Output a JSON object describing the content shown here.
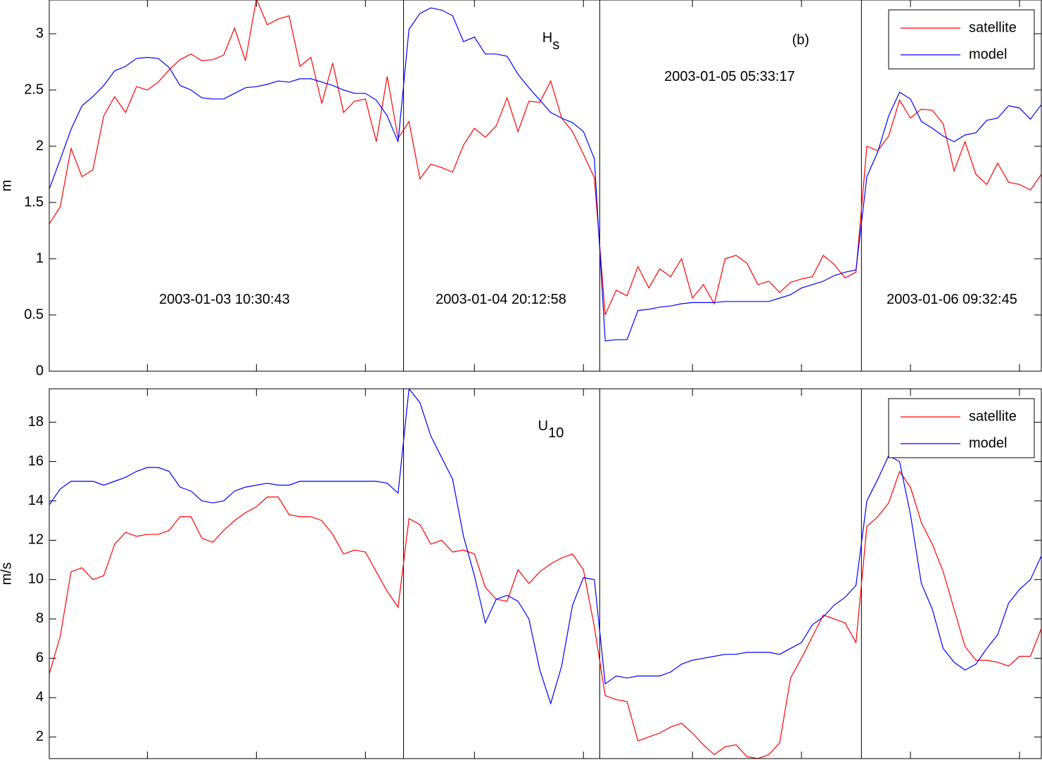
{
  "chart_data": [
    {
      "type": "line",
      "ylabel": "m",
      "annotations": [
        {
          "text": "H",
          "sub": "s"
        },
        {
          "text": "(b)"
        },
        {
          "text": "2003-01-05 05:33:17"
        },
        {
          "text": "2003-01-03 10:30:43"
        },
        {
          "text": "2003-01-04 20:12:58"
        },
        {
          "text": "2003-01-06 09:32:45"
        }
      ],
      "x": [
        1,
        2,
        3,
        4,
        5,
        6,
        7,
        8,
        9,
        10,
        11,
        12,
        13,
        14,
        15,
        16,
        17,
        18,
        19,
        20,
        21,
        22,
        23,
        24,
        25,
        26,
        27,
        28,
        29,
        30,
        31,
        32,
        33,
        34,
        35,
        36,
        37,
        38,
        39,
        40,
        41,
        42,
        43,
        44,
        45,
        46,
        47,
        48,
        49,
        50,
        51,
        52,
        53,
        54,
        55,
        56,
        57,
        58,
        59,
        60,
        61,
        62,
        63,
        64,
        65,
        66,
        67,
        68,
        69,
        70,
        71,
        72,
        73,
        74,
        75,
        76,
        77,
        78,
        79,
        80,
        81,
        82,
        83,
        84,
        85,
        86,
        87,
        88,
        89,
        90,
        91,
        92
      ],
      "series": [
        {
          "name": "satellite",
          "color": "#ff0000",
          "values": [
            1.31,
            1.46,
            1.98,
            1.73,
            1.79,
            2.27,
            2.44,
            2.3,
            2.53,
            2.5,
            2.57,
            2.68,
            2.77,
            2.82,
            2.76,
            2.77,
            2.81,
            3.05,
            2.76,
            3.31,
            3.08,
            3.13,
            3.16,
            2.71,
            2.79,
            2.38,
            2.74,
            2.3,
            2.4,
            2.42,
            2.04,
            2.62,
            2.07,
            2.22,
            1.71,
            1.84,
            1.81,
            1.77,
            2.01,
            2.16,
            2.08,
            2.18,
            2.43,
            2.13,
            2.4,
            2.39,
            2.58,
            2.25,
            2.13,
            1.93,
            1.72,
            0.5,
            0.72,
            0.67,
            0.93,
            0.74,
            0.91,
            0.84,
            1.0,
            0.65,
            0.77,
            0.6,
            1.0,
            1.03,
            0.96,
            0.77,
            0.8,
            0.7,
            0.79,
            0.82,
            0.84,
            1.03,
            0.95,
            0.83,
            0.88,
            2.0,
            1.96,
            2.09,
            2.41,
            2.25,
            2.33,
            2.32,
            2.2,
            1.78,
            2.04,
            1.75,
            1.66,
            1.85,
            1.68,
            1.66,
            1.61,
            1.75
          ]
        },
        {
          "name": "model",
          "color": "#0000ff",
          "values": [
            1.62,
            1.88,
            2.15,
            2.36,
            2.44,
            2.54,
            2.67,
            2.71,
            2.78,
            2.79,
            2.78,
            2.7,
            2.54,
            2.5,
            2.43,
            2.42,
            2.42,
            2.47,
            2.52,
            2.53,
            2.55,
            2.58,
            2.57,
            2.6,
            2.6,
            2.57,
            2.54,
            2.5,
            2.47,
            2.47,
            2.41,
            2.27,
            2.04,
            3.04,
            3.18,
            3.23,
            3.21,
            3.16,
            2.93,
            2.97,
            2.82,
            2.82,
            2.8,
            2.64,
            2.52,
            2.41,
            2.3,
            2.25,
            2.21,
            2.13,
            1.89,
            0.27,
            0.28,
            0.28,
            0.54,
            0.55,
            0.57,
            0.58,
            0.6,
            0.61,
            0.61,
            0.61,
            0.62,
            0.62,
            0.62,
            0.62,
            0.62,
            0.65,
            0.68,
            0.74,
            0.77,
            0.8,
            0.85,
            0.88,
            0.9,
            1.73,
            1.95,
            2.27,
            2.48,
            2.42,
            2.22,
            2.16,
            2.09,
            2.04,
            2.1,
            2.12,
            2.23,
            2.25,
            2.36,
            2.34,
            2.24,
            2.37
          ]
        }
      ],
      "vlines": [
        33.5,
        51.5,
        75.5
      ],
      "xlim": [
        1,
        92
      ],
      "xticks": [
        10,
        20,
        30,
        40,
        50,
        60,
        70,
        80,
        90
      ],
      "ylim": [
        0,
        3.3
      ],
      "yticks": [
        0,
        0.5,
        1,
        1.5,
        2,
        2.5,
        3
      ],
      "legend": "upper right"
    },
    {
      "type": "line",
      "ylabel": "m/s",
      "annotations": [
        {
          "text": "U",
          "sub": "10"
        }
      ],
      "x": [
        1,
        2,
        3,
        4,
        5,
        6,
        7,
        8,
        9,
        10,
        11,
        12,
        13,
        14,
        15,
        16,
        17,
        18,
        19,
        20,
        21,
        22,
        23,
        24,
        25,
        26,
        27,
        28,
        29,
        30,
        31,
        32,
        33,
        34,
        35,
        36,
        37,
        38,
        39,
        40,
        41,
        42,
        43,
        44,
        45,
        46,
        47,
        48,
        49,
        50,
        51,
        52,
        53,
        54,
        55,
        56,
        57,
        58,
        59,
        60,
        61,
        62,
        63,
        64,
        65,
        66,
        67,
        68,
        69,
        70,
        71,
        72,
        73,
        74,
        75,
        76,
        77,
        78,
        79,
        80,
        81,
        82,
        83,
        84,
        85,
        86,
        87,
        88,
        89,
        90,
        91,
        92
      ],
      "series": [
        {
          "name": "satellite",
          "color": "#ff0000",
          "values": [
            5.2,
            7.1,
            10.4,
            10.6,
            10.0,
            10.2,
            11.8,
            12.4,
            12.2,
            12.3,
            12.3,
            12.5,
            13.2,
            13.2,
            12.1,
            11.9,
            12.5,
            13.0,
            13.4,
            13.7,
            14.2,
            14.2,
            13.3,
            13.2,
            13.2,
            13.0,
            12.3,
            11.3,
            11.5,
            11.4,
            10.4,
            9.4,
            8.6,
            13.1,
            12.8,
            11.8,
            12.0,
            11.4,
            11.5,
            11.3,
            9.6,
            9.0,
            8.9,
            10.5,
            9.8,
            10.4,
            10.8,
            11.1,
            11.3,
            10.5,
            7.6,
            4.1,
            3.9,
            3.8,
            1.8,
            2.0,
            2.2,
            2.5,
            2.7,
            2.2,
            1.6,
            1.1,
            1.5,
            1.6,
            1.0,
            0.9,
            1.1,
            1.7,
            5.0,
            6.0,
            7.1,
            8.2,
            8.0,
            7.8,
            6.8,
            12.7,
            13.2,
            13.9,
            15.5,
            14.7,
            12.9,
            11.8,
            10.4,
            8.5,
            6.6,
            5.9,
            5.9,
            5.8,
            5.6,
            6.1,
            6.1,
            7.5
          ]
        },
        {
          "name": "model",
          "color": "#0000ff",
          "values": [
            13.8,
            14.6,
            15.0,
            15.0,
            15.0,
            14.8,
            15.0,
            15.2,
            15.5,
            15.7,
            15.7,
            15.5,
            14.7,
            14.5,
            14.0,
            13.9,
            14.0,
            14.5,
            14.7,
            14.8,
            14.9,
            14.8,
            14.8,
            15.0,
            15.0,
            15.0,
            15.0,
            15.0,
            15.0,
            15.0,
            15.0,
            14.9,
            14.4,
            19.7,
            19.0,
            17.3,
            16.2,
            15.1,
            12.2,
            10.2,
            7.8,
            9.0,
            9.2,
            8.9,
            8.0,
            5.4,
            3.7,
            5.6,
            8.7,
            10.1,
            10.0,
            4.7,
            5.1,
            5.0,
            5.1,
            5.1,
            5.1,
            5.3,
            5.7,
            5.9,
            6.0,
            6.1,
            6.2,
            6.2,
            6.3,
            6.3,
            6.3,
            6.2,
            6.5,
            6.8,
            7.7,
            8.1,
            8.7,
            9.1,
            9.7,
            14.0,
            15.1,
            16.3,
            16.0,
            13.3,
            9.8,
            8.5,
            6.5,
            5.8,
            5.4,
            5.7,
            6.5,
            7.2,
            8.8,
            9.5,
            10.0,
            11.2
          ]
        }
      ],
      "vlines": [
        33.5,
        51.5,
        75.5
      ],
      "xlim": [
        1,
        92
      ],
      "xticks": [
        10,
        20,
        30,
        40,
        50,
        60,
        70,
        80,
        90
      ],
      "ylim": [
        0.9,
        19.7
      ],
      "yticks": [
        2,
        4,
        6,
        8,
        10,
        12,
        14,
        16,
        18
      ],
      "legend": "upper right"
    }
  ]
}
